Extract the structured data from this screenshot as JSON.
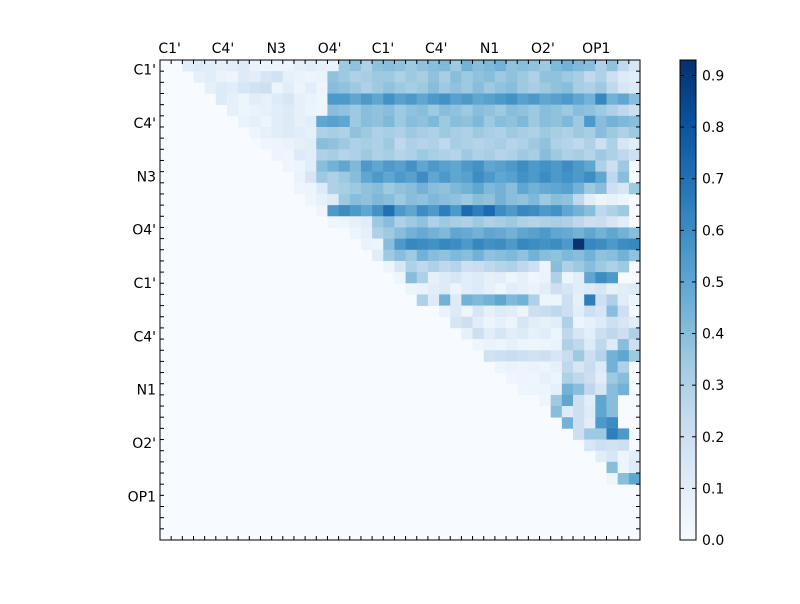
{
  "chart_data": {
    "type": "heatmap",
    "title": "",
    "xlabel": "",
    "ylabel": "",
    "x_tick_labels": [
      "C1'",
      "C4'",
      "N3",
      "O4'",
      "C1'",
      "C4'",
      "N1",
      "O2'",
      "OP1"
    ],
    "y_tick_labels": [
      "C1'",
      "C4'",
      "N3",
      "O4'",
      "C1'",
      "C4'",
      "N1",
      "O2'",
      "OP1"
    ],
    "grid_size": 43,
    "colormap": "Blues",
    "colorbar": {
      "ticks": [
        "0.0",
        "0.1",
        "0.2",
        "0.3",
        "0.4",
        "0.5",
        "0.6",
        "0.7",
        "0.8",
        "0.9"
      ],
      "vmin": 0.0,
      "vmax": 0.93
    },
    "rows": [
      {
        "row": 0,
        "start": 2,
        "values": [
          0.1,
          0.12,
          0.1,
          0.08,
          0.1,
          0.12,
          0.06,
          0.05,
          0.05,
          0.05,
          0.08,
          0.1,
          0.08,
          0.06,
          0.35,
          0.38,
          0.3,
          0.38,
          0.4,
          0.38,
          0.35,
          0.38,
          0.4,
          0.42,
          0.35,
          0.45,
          0.4,
          0.42,
          0.45,
          0.38,
          0.4,
          0.38,
          0.35,
          0.42,
          0.45,
          0.42,
          0.4,
          0.3,
          0.38,
          0.25,
          0.15
        ]
      },
      {
        "row": 1,
        "start": 3,
        "values": [
          0.08,
          0.1,
          0.06,
          0.05,
          0.12,
          0.1,
          0.15,
          0.18,
          0.08,
          0.06,
          0.05,
          0.06,
          0.38,
          0.35,
          0.3,
          0.32,
          0.35,
          0.35,
          0.3,
          0.35,
          0.32,
          0.38,
          0.32,
          0.4,
          0.35,
          0.38,
          0.4,
          0.35,
          0.38,
          0.35,
          0.3,
          0.38,
          0.38,
          0.35,
          0.32,
          0.25,
          0.3,
          0.2,
          0.12,
          0.1
        ]
      },
      {
        "row": 2,
        "start": 4,
        "values": [
          0.08,
          0.12,
          0.1,
          0.15,
          0.18,
          0.2,
          0.05,
          0.1,
          0.05,
          0.1,
          0.04,
          0.4,
          0.38,
          0.35,
          0.3,
          0.35,
          0.38,
          0.35,
          0.32,
          0.35,
          0.4,
          0.35,
          0.38,
          0.35,
          0.4,
          0.35,
          0.38,
          0.4,
          0.35,
          0.32,
          0.35,
          0.38,
          0.4,
          0.32,
          0.3,
          0.35,
          0.25,
          0.15,
          0.12
        ]
      },
      {
        "row": 3,
        "start": 5,
        "values": [
          0.12,
          0.08,
          0.05,
          0.1,
          0.08,
          0.12,
          0.15,
          0.08,
          0.06,
          0.04,
          0.55,
          0.55,
          0.5,
          0.55,
          0.5,
          0.58,
          0.52,
          0.55,
          0.5,
          0.55,
          0.58,
          0.52,
          0.55,
          0.5,
          0.52,
          0.55,
          0.58,
          0.52,
          0.55,
          0.5,
          0.52,
          0.55,
          0.5,
          0.45,
          0.62,
          0.45,
          0.5,
          0.4
        ]
      },
      {
        "row": 4,
        "start": 6,
        "values": [
          0.08,
          0.05,
          0.06,
          0.08,
          0.1,
          0.12,
          0.08,
          0.05,
          0.04,
          0.4,
          0.38,
          0.35,
          0.4,
          0.38,
          0.4,
          0.35,
          0.38,
          0.4,
          0.35,
          0.4,
          0.38,
          0.35,
          0.4,
          0.38,
          0.35,
          0.4,
          0.38,
          0.35,
          0.4,
          0.38,
          0.35,
          0.4,
          0.38,
          0.35,
          0.3,
          0.25,
          0.2
        ]
      },
      {
        "row": 5,
        "start": 7,
        "values": [
          0.06,
          0.08,
          0.05,
          0.1,
          0.12,
          0.08,
          0.1,
          0.5,
          0.52,
          0.5,
          0.35,
          0.4,
          0.38,
          0.42,
          0.35,
          0.4,
          0.38,
          0.42,
          0.35,
          0.4,
          0.38,
          0.42,
          0.35,
          0.4,
          0.38,
          0.42,
          0.35,
          0.4,
          0.38,
          0.42,
          0.35,
          0.55,
          0.4,
          0.45,
          0.42,
          0.4
        ]
      },
      {
        "row": 6,
        "start": 8,
        "values": [
          0.05,
          0.08,
          0.1,
          0.12,
          0.1,
          0.08,
          0.3,
          0.32,
          0.3,
          0.38,
          0.35,
          0.3,
          0.32,
          0.3,
          0.35,
          0.32,
          0.3,
          0.35,
          0.32,
          0.3,
          0.35,
          0.32,
          0.3,
          0.35,
          0.32,
          0.3,
          0.35,
          0.32,
          0.3,
          0.35,
          0.32,
          0.4,
          0.35,
          0.3,
          0.35
        ]
      },
      {
        "row": 7,
        "start": 9,
        "values": [
          0.04,
          0.05,
          0.06,
          0.08,
          0.1,
          0.4,
          0.38,
          0.35,
          0.3,
          0.32,
          0.3,
          0.35,
          0.25,
          0.3,
          0.28,
          0.3,
          0.25,
          0.32,
          0.3,
          0.28,
          0.3,
          0.32,
          0.28,
          0.3,
          0.35,
          0.38,
          0.3,
          0.28,
          0.25,
          0.3,
          0.2,
          0.3,
          0.15,
          0.1
        ]
      },
      {
        "row": 8,
        "start": 10,
        "values": [
          0.05,
          0.04,
          0.12,
          0.1,
          0.3,
          0.32,
          0.28,
          0.3,
          0.35,
          0.3,
          0.32,
          0.28,
          0.3,
          0.35,
          0.32,
          0.3,
          0.28,
          0.35,
          0.3,
          0.32,
          0.28,
          0.3,
          0.35,
          0.32,
          0.4,
          0.35,
          0.3,
          0.32,
          0.28,
          0.35,
          0.3,
          0.25,
          0.2
        ]
      },
      {
        "row": 9,
        "start": 11,
        "values": [
          0.04,
          0.05,
          0.1,
          0.4,
          0.45,
          0.5,
          0.42,
          0.55,
          0.5,
          0.55,
          0.52,
          0.58,
          0.5,
          0.55,
          0.52,
          0.5,
          0.55,
          0.58,
          0.5,
          0.52,
          0.55,
          0.6,
          0.55,
          0.58,
          0.55,
          0.6,
          0.55,
          0.5,
          0.3,
          0.2,
          0.35
        ]
      },
      {
        "row": 10,
        "start": 12,
        "values": [
          0.06,
          0.15,
          0.35,
          0.3,
          0.35,
          0.4,
          0.5,
          0.55,
          0.5,
          0.55,
          0.52,
          0.6,
          0.5,
          0.55,
          0.5,
          0.52,
          0.6,
          0.55,
          0.5,
          0.52,
          0.58,
          0.55,
          0.6,
          0.55,
          0.58,
          0.55,
          0.6,
          0.5,
          0.25,
          0.4
        ]
      },
      {
        "row": 11,
        "start": 12,
        "values": [
          0.04,
          0.05,
          0.12,
          0.3,
          0.32,
          0.35,
          0.38,
          0.4,
          0.35,
          0.38,
          0.4,
          0.45,
          0.4,
          0.38,
          0.42,
          0.45,
          0.5,
          0.42,
          0.45,
          0.4,
          0.5,
          0.45,
          0.48,
          0.5,
          0.52,
          0.45,
          0.35,
          0.4,
          0.2,
          0.15,
          0.35
        ]
      },
      {
        "row": 12,
        "start": 13,
        "values": [
          0.04,
          0.08,
          0.12,
          0.35,
          0.4,
          0.38,
          0.42,
          0.4,
          0.35,
          0.4,
          0.38,
          0.42,
          0.4,
          0.38,
          0.35,
          0.4,
          0.38,
          0.45,
          0.4,
          0.38,
          0.42,
          0.35,
          0.4,
          0.38,
          0.25,
          0.1,
          0.05,
          0.08,
          0.05
        ]
      },
      {
        "row": 13,
        "start": 14,
        "values": [
          0.04,
          0.55,
          0.6,
          0.55,
          0.5,
          0.58,
          0.7,
          0.55,
          0.5,
          0.6,
          0.55,
          0.65,
          0.55,
          0.72,
          0.65,
          0.72,
          0.6,
          0.55,
          0.62,
          0.6,
          0.55,
          0.58,
          0.5,
          0.45,
          0.4,
          0.25,
          0.3,
          0.35
        ]
      },
      {
        "row": 14,
        "start": 15,
        "values": [
          0.04,
          0.05,
          0.08,
          0.1,
          0.35,
          0.4,
          0.3,
          0.35,
          0.38,
          0.3,
          0.35,
          0.32,
          0.3,
          0.35,
          0.3,
          0.32,
          0.35,
          0.3,
          0.28,
          0.3,
          0.32,
          0.3,
          0.25,
          0.2,
          0.22,
          0.15,
          0.1
        ]
      },
      {
        "row": 15,
        "start": 17,
        "values": [
          0.05,
          0.08,
          0.3,
          0.35,
          0.4,
          0.45,
          0.48,
          0.45,
          0.42,
          0.5,
          0.48,
          0.45,
          0.5,
          0.48,
          0.45,
          0.5,
          0.52,
          0.55,
          0.5,
          0.48,
          0.45,
          0.5,
          0.45,
          0.5,
          0.45,
          0.4
        ]
      },
      {
        "row": 16,
        "start": 18,
        "values": [
          0.06,
          0.05,
          0.4,
          0.55,
          0.62,
          0.6,
          0.58,
          0.62,
          0.6,
          0.55,
          0.62,
          0.58,
          0.6,
          0.55,
          0.62,
          0.6,
          0.58,
          0.6,
          0.55,
          0.92,
          0.62,
          0.6,
          0.55,
          0.6,
          0.62
        ]
      },
      {
        "row": 17,
        "start": 19,
        "values": [
          0.1,
          0.35,
          0.4,
          0.35,
          0.45,
          0.4,
          0.38,
          0.42,
          0.4,
          0.45,
          0.38,
          0.4,
          0.42,
          0.38,
          0.45,
          0.4,
          0.38,
          0.42,
          0.4,
          0.45,
          0.38,
          0.4,
          0.45,
          0.38
        ]
      },
      {
        "row": 18,
        "start": 20,
        "values": [
          0.05,
          0.15,
          0.3,
          0.25,
          0.3,
          0.25,
          0.28,
          0.2,
          0.22,
          0.25,
          0.28,
          0.3,
          0.25,
          0.2,
          0.05,
          0.4,
          0.3,
          0.35,
          0.4,
          0.35,
          0.3,
          0.35
        ]
      },
      {
        "row": 19,
        "start": 21,
        "values": [
          0.05,
          0.4,
          0.3,
          0.08,
          0.12,
          0.15,
          0.1,
          0.12,
          0.08,
          0.1,
          0.05,
          0.08,
          0.04,
          0.06,
          0.3,
          0.05,
          0.1,
          0.5,
          0.6,
          0.55
        ]
      },
      {
        "row": 20,
        "start": 22,
        "values": [
          0.05,
          0.06,
          0.1,
          0.12,
          0.05,
          0.1,
          0.12,
          0.08,
          0.05,
          0.1,
          0.08,
          0.06,
          0.1,
          0.2,
          0.15,
          0.1,
          0.12,
          0.15,
          0.08,
          0.1,
          0.12
        ]
      },
      {
        "row": 21,
        "start": 23,
        "values": [
          0.3,
          0.12,
          0.45,
          0.12,
          0.45,
          0.42,
          0.45,
          0.5,
          0.42,
          0.45,
          0.3,
          0.05,
          0.05,
          0.2,
          0.08,
          0.65,
          0.2,
          0.3,
          0.1,
          0.05
        ]
      },
      {
        "row": 22,
        "start": 25,
        "values": [
          0.06,
          0.12,
          0.05,
          0.15,
          0.08,
          0.12,
          0.1,
          0.05,
          0.2,
          0.22,
          0.25,
          0.2,
          0.1,
          0.2,
          0.15,
          0.4,
          0.2
        ]
      },
      {
        "row": 23,
        "start": 26,
        "values": [
          0.15,
          0.2,
          0.1,
          0.05,
          0.08,
          0.05,
          0.15,
          0.1,
          0.08,
          0.1,
          0.3,
          0.05,
          0.08,
          0.12,
          0.2,
          0.15,
          0.1
        ]
      },
      {
        "row": 24,
        "start": 27,
        "values": [
          0.08,
          0.2,
          0.1,
          0.15,
          0.1,
          0.12,
          0.08,
          0.1,
          0.05,
          0.25,
          0.15,
          0.1,
          0.2,
          0.25,
          0.2,
          0.3
        ]
      },
      {
        "row": 25,
        "start": 28,
        "values": [
          0.04,
          0.06,
          0.05,
          0.08,
          0.05,
          0.04,
          0.05,
          0.06,
          0.3,
          0.25,
          0.12,
          0.25,
          0.12,
          0.4,
          0.2
        ]
      },
      {
        "row": 26,
        "start": 29,
        "values": [
          0.18,
          0.2,
          0.22,
          0.2,
          0.18,
          0.2,
          0.15,
          0.22,
          0.35,
          0.2,
          0.28,
          0.45,
          0.5,
          0.35
        ]
      },
      {
        "row": 27,
        "start": 30,
        "values": [
          0.05,
          0.06,
          0.05,
          0.06,
          0.05,
          0.08,
          0.25,
          0.15,
          0.22,
          0.12,
          0.45,
          0.3
        ]
      },
      {
        "row": 28,
        "start": 31,
        "values": [
          0.04,
          0.05,
          0.04,
          0.08,
          0.05,
          0.3,
          0.25,
          0.2,
          0.1,
          0.35,
          0.4
        ]
      },
      {
        "row": 29,
        "start": 32,
        "values": [
          0.04,
          0.05,
          0.05,
          0.08,
          0.45,
          0.4,
          0.25,
          0.15,
          0.4,
          0.45
        ]
      },
      {
        "row": 30,
        "start": 34,
        "values": [
          0.04,
          0.35,
          0.5,
          0.2,
          0.1,
          0.5,
          0.4
        ]
      },
      {
        "row": 31,
        "start": 35,
        "values": [
          0.4,
          0.12,
          0.2,
          0.12,
          0.5,
          0.4
        ]
      },
      {
        "row": 32,
        "start": 36,
        "values": [
          0.45,
          0.2,
          0.1,
          0.55,
          0.6
        ]
      },
      {
        "row": 33,
        "start": 37,
        "values": [
          0.2,
          0.35,
          0.35,
          0.65,
          0.55
        ]
      },
      {
        "row": 34,
        "start": 38,
        "values": [
          0.15,
          0.2,
          0.18,
          0.2
        ]
      },
      {
        "row": 35,
        "start": 39,
        "values": [
          0.1,
          0.15,
          0.05,
          0.1
        ]
      },
      {
        "row": 36,
        "start": 40,
        "values": [
          0.4,
          0.05,
          0.12
        ]
      },
      {
        "row": 37,
        "start": 40,
        "values": [
          0.05,
          0.4,
          0.5
        ]
      }
    ]
  }
}
